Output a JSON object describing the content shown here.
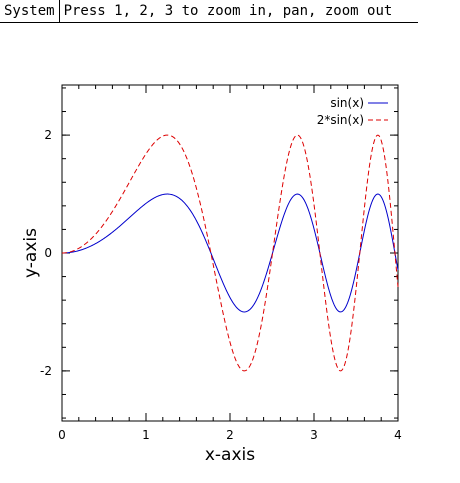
{
  "menubar": {
    "system_label": "System",
    "status_text": "Press 1, 2, 3 to zoom in, pan, zoom out"
  },
  "chart_data": {
    "type": "line",
    "title": "",
    "xlabel": "x-axis",
    "ylabel": "y-axis",
    "xlim": [
      0,
      4
    ],
    "ylim": [
      -2.85,
      2.85
    ],
    "x_ticks": [
      0,
      1,
      2,
      3,
      4
    ],
    "y_ticks": [
      -2,
      0,
      2
    ],
    "x_tick_labels": [
      "0",
      "1",
      "2",
      "3",
      "4"
    ],
    "y_tick_labels": [
      "-2",
      "0",
      "2"
    ],
    "grid": false,
    "legend_position": "top-right",
    "series": [
      {
        "name": "sin(x)",
        "color": "#0000cc",
        "dash": "solid",
        "amplitude": 1,
        "x": [
          0,
          0.2,
          0.4,
          0.6,
          0.8,
          1.0,
          1.25,
          1.4,
          1.6,
          1.8,
          2.0,
          2.18,
          2.35,
          2.55,
          2.8,
          3.0,
          3.3,
          3.55,
          3.75,
          3.9,
          4.0
        ],
        "y": [
          0,
          0.04,
          0.16,
          0.36,
          0.6,
          0.84,
          1.0,
          0.92,
          0.55,
          0.0,
          -0.65,
          -1.0,
          -0.8,
          0.0,
          1.0,
          0.3,
          -1.0,
          0.0,
          1.0,
          0.3,
          -0.3
        ]
      },
      {
        "name": "2*sin(x)",
        "color": "#dd0000",
        "dash": "dashed",
        "amplitude": 2,
        "x": [
          0,
          0.2,
          0.4,
          0.6,
          0.8,
          1.0,
          1.25,
          1.4,
          1.6,
          1.8,
          2.0,
          2.18,
          2.35,
          2.55,
          2.8,
          3.0,
          3.3,
          3.55,
          3.75,
          3.9,
          4.0
        ],
        "y": [
          0,
          0.08,
          0.32,
          0.72,
          1.2,
          1.68,
          2.0,
          1.84,
          1.1,
          0.0,
          -1.3,
          -2.0,
          -1.6,
          0.0,
          2.0,
          0.6,
          -2.0,
          0.0,
          2.0,
          0.6,
          -0.6
        ]
      }
    ]
  }
}
